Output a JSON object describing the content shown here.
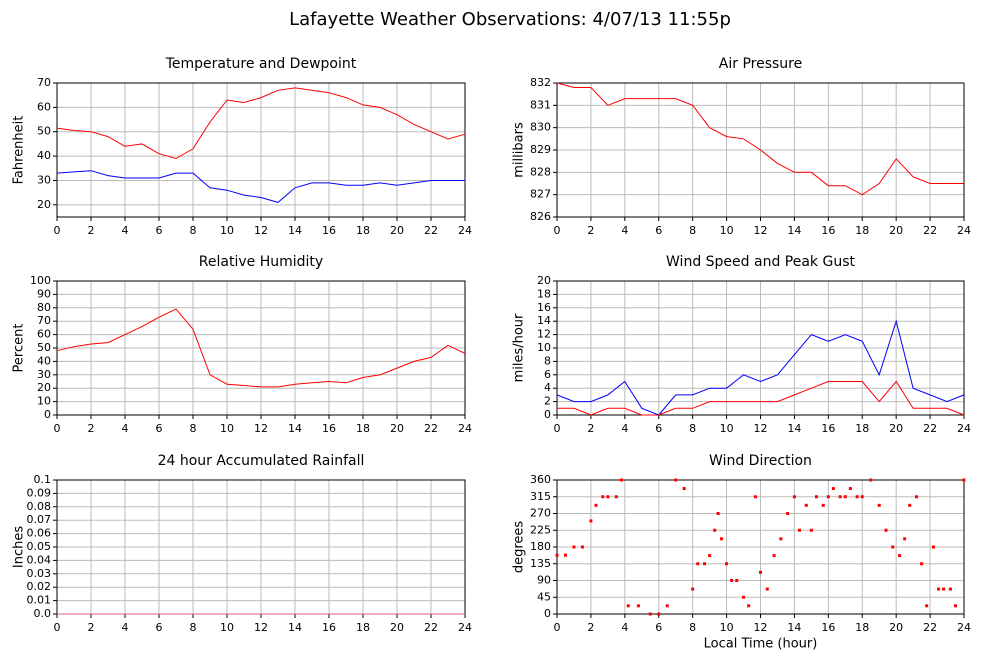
{
  "title": "Lafayette Weather Observations: 4/07/13 11:55p",
  "chart_data": [
    {
      "type": "line",
      "title": "Temperature and Dewpoint",
      "ylabel": "Fahrenheit",
      "x": [
        0,
        1,
        2,
        3,
        4,
        5,
        6,
        7,
        8,
        9,
        10,
        11,
        12,
        13,
        14,
        15,
        16,
        17,
        18,
        19,
        20,
        21,
        22,
        23,
        24
      ],
      "series": [
        {
          "color": "#ff0000",
          "values": [
            51.5,
            50.5,
            50,
            48,
            44,
            45,
            41,
            39,
            43,
            54,
            63,
            62,
            64,
            67,
            68,
            67,
            66,
            64,
            61,
            60,
            57,
            53,
            50,
            47,
            49
          ]
        },
        {
          "color": "#0000ff",
          "values": [
            33,
            33.5,
            34,
            32,
            31,
            31,
            31,
            33,
            33,
            27,
            26,
            24,
            23,
            21,
            27,
            29,
            29,
            28,
            28,
            29,
            28,
            29,
            30,
            30,
            30
          ]
        }
      ],
      "xlim": [
        0,
        24
      ],
      "xticks": [
        0,
        2,
        4,
        6,
        8,
        10,
        12,
        14,
        16,
        18,
        20,
        22,
        24
      ],
      "ylim": [
        15,
        70
      ],
      "yticks": [
        20,
        30,
        40,
        50,
        60,
        70
      ],
      "grid": true
    },
    {
      "type": "line",
      "title": "Air Pressure",
      "ylabel": "millibars",
      "x": [
        0,
        1,
        2,
        3,
        4,
        5,
        6,
        7,
        8,
        9,
        10,
        11,
        12,
        13,
        14,
        15,
        16,
        17,
        18,
        19,
        20,
        21,
        22,
        23,
        24
      ],
      "series": [
        {
          "color": "#ff0000",
          "values": [
            832,
            831.8,
            831.8,
            831,
            831.3,
            831.3,
            831.3,
            831.3,
            831,
            830,
            829.6,
            829.5,
            829,
            828.4,
            828,
            828,
            827.4,
            827.4,
            827,
            827.5,
            828.6,
            827.8,
            827.5,
            827.5,
            827.5
          ]
        }
      ],
      "xlim": [
        0,
        24
      ],
      "xticks": [
        0,
        2,
        4,
        6,
        8,
        10,
        12,
        14,
        16,
        18,
        20,
        22,
        24
      ],
      "ylim": [
        826,
        832
      ],
      "yticks": [
        826,
        827,
        828,
        829,
        830,
        831,
        832
      ],
      "grid": true
    },
    {
      "type": "line",
      "title": "Relative Humidity",
      "ylabel": "Percent",
      "x": [
        0,
        1,
        2,
        3,
        4,
        5,
        6,
        7,
        8,
        9,
        10,
        11,
        12,
        13,
        14,
        15,
        16,
        17,
        18,
        19,
        20,
        21,
        22,
        23,
        24
      ],
      "series": [
        {
          "color": "#ff0000",
          "values": [
            48,
            51,
            53,
            54,
            60,
            66,
            73,
            79,
            64,
            30,
            23,
            22,
            21,
            21,
            23,
            24,
            25,
            24,
            28,
            30,
            35,
            40,
            43,
            52,
            46
          ]
        }
      ],
      "xlim": [
        0,
        24
      ],
      "xticks": [
        0,
        2,
        4,
        6,
        8,
        10,
        12,
        14,
        16,
        18,
        20,
        22,
        24
      ],
      "ylim": [
        0,
        100
      ],
      "yticks": [
        0,
        10,
        20,
        30,
        40,
        50,
        60,
        70,
        80,
        90,
        100
      ],
      "grid": true
    },
    {
      "type": "line",
      "title": "Wind Speed and Peak Gust",
      "ylabel": "miles/hour",
      "x": [
        0,
        1,
        2,
        3,
        4,
        5,
        6,
        7,
        8,
        9,
        10,
        11,
        12,
        13,
        14,
        15,
        16,
        17,
        18,
        19,
        20,
        21,
        22,
        23,
        24
      ],
      "series": [
        {
          "color": "#0000ff",
          "values": [
            3,
            2,
            2,
            3,
            5,
            1,
            0,
            3,
            3,
            4,
            4,
            6,
            5,
            6,
            9,
            12,
            11,
            12,
            11,
            6,
            14,
            4,
            3,
            2,
            3
          ]
        },
        {
          "color": "#ff0000",
          "values": [
            1,
            1,
            0,
            1,
            1,
            0,
            0,
            1,
            1,
            2,
            2,
            2,
            2,
            2,
            3,
            4,
            5,
            5,
            5,
            2,
            5,
            1,
            1,
            1,
            0
          ]
        }
      ],
      "xlim": [
        0,
        24
      ],
      "xticks": [
        0,
        2,
        4,
        6,
        8,
        10,
        12,
        14,
        16,
        18,
        20,
        22,
        24
      ],
      "ylim": [
        0,
        20
      ],
      "yticks": [
        0,
        2,
        4,
        6,
        8,
        10,
        12,
        14,
        16,
        18,
        20
      ],
      "grid": true
    },
    {
      "type": "line",
      "title": "24 hour Accumulated Rainfall",
      "ylabel": "Inches",
      "x": [
        0,
        1,
        2,
        3,
        4,
        5,
        6,
        7,
        8,
        9,
        10,
        11,
        12,
        13,
        14,
        15,
        16,
        17,
        18,
        19,
        20,
        21,
        22,
        23,
        24
      ],
      "series": [
        {
          "color": "#e0608a",
          "values": [
            0,
            0,
            0,
            0,
            0,
            0,
            0,
            0,
            0,
            0,
            0,
            0,
            0,
            0,
            0,
            0,
            0,
            0,
            0,
            0,
            0,
            0,
            0,
            0,
            0
          ]
        }
      ],
      "xlim": [
        0,
        24
      ],
      "xticks": [
        0,
        2,
        4,
        6,
        8,
        10,
        12,
        14,
        16,
        18,
        20,
        22,
        24
      ],
      "ylim": [
        0,
        0.1
      ],
      "yticks": [
        {
          "value": 0,
          "label": "0.0"
        },
        0.01,
        0.02,
        0.03,
        0.04,
        0.05,
        0.06,
        0.07,
        0.08,
        0.09,
        0.1
      ],
      "grid": true
    },
    {
      "type": "scatter",
      "title": "Wind Direction",
      "ylabel": "degrees",
      "xlabel": "Local Time (hour)",
      "x": [
        0,
        0.5,
        1,
        1.5,
        2,
        2.3,
        2.7,
        3,
        3.5,
        3.8,
        4.2,
        4.8,
        5.5,
        6,
        6.5,
        7,
        7.5,
        8,
        8.3,
        8.7,
        9,
        9.3,
        9.5,
        9.7,
        10,
        10.3,
        10.6,
        11,
        11.3,
        11.7,
        12,
        12.4,
        12.8,
        13.2,
        13.6,
        14,
        14.3,
        14.7,
        15,
        15.3,
        15.7,
        16,
        16.3,
        16.7,
        17,
        17.3,
        17.7,
        18,
        18.5,
        19,
        19.4,
        19.8,
        20.2,
        20.5,
        20.8,
        21.2,
        21.5,
        21.8,
        22.2,
        22.5,
        22.8,
        23.2,
        23.5,
        24
      ],
      "values": [
        158,
        158,
        180,
        180,
        250,
        292,
        315,
        315,
        315,
        360,
        22,
        22,
        0,
        0,
        22,
        360,
        337,
        67,
        135,
        135,
        157,
        225,
        270,
        202,
        135,
        90,
        90,
        45,
        22,
        315,
        112,
        67,
        157,
        202,
        270,
        315,
        225,
        292,
        225,
        315,
        292,
        315,
        337,
        315,
        315,
        337,
        315,
        315,
        360,
        292,
        225,
        180,
        157,
        202,
        292,
        315,
        135,
        22,
        180,
        67,
        67,
        67,
        22,
        360
      ],
      "color": "#ff0000",
      "xlim": [
        0,
        24
      ],
      "xticks": [
        0,
        2,
        4,
        6,
        8,
        10,
        12,
        14,
        16,
        18,
        20,
        22,
        24
      ],
      "ylim": [
        0,
        360
      ],
      "yticks": [
        0,
        45,
        90,
        135,
        180,
        225,
        270,
        315,
        360
      ],
      "grid": true
    }
  ]
}
